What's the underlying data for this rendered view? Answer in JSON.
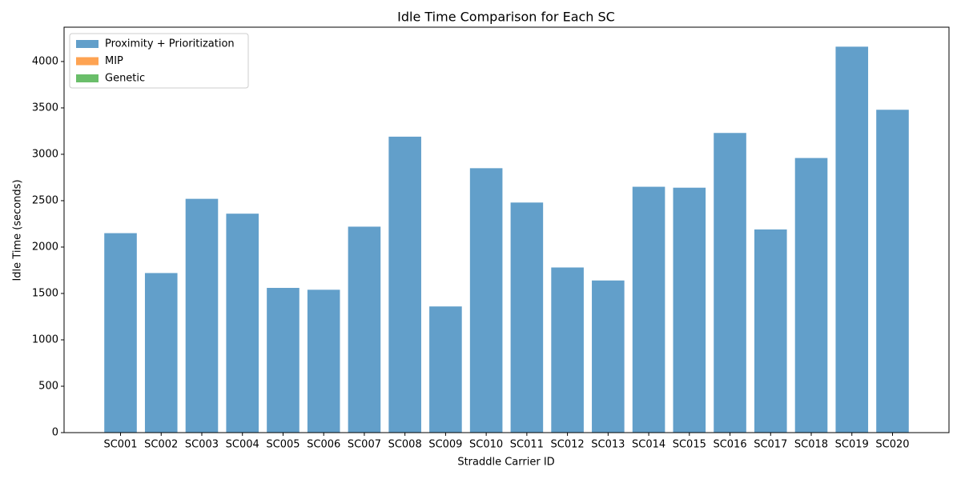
{
  "chart_data": {
    "type": "bar",
    "title": "Idle Time Comparison for Each SC",
    "xlabel": "Straddle Carrier ID",
    "ylabel": "Idle Time (seconds)",
    "categories": [
      "SC001",
      "SC002",
      "SC003",
      "SC004",
      "SC005",
      "SC006",
      "SC007",
      "SC008",
      "SC009",
      "SC010",
      "SC011",
      "SC012",
      "SC013",
      "SC014",
      "SC015",
      "SC016",
      "SC017",
      "SC018",
      "SC019",
      "SC020"
    ],
    "series": [
      {
        "name": "Proximity + Prioritization",
        "color": "#629fca",
        "values": [
          2150,
          1720,
          2520,
          2360,
          1560,
          1540,
          2220,
          3190,
          1360,
          2850,
          2480,
          1780,
          1640,
          2650,
          2640,
          3230,
          2190,
          2960,
          4160,
          3480
        ]
      },
      {
        "name": "MIP",
        "color": "#fea352",
        "values": [
          0,
          0,
          0,
          0,
          0,
          0,
          0,
          0,
          0,
          0,
          0,
          0,
          0,
          0,
          0,
          0,
          0,
          0,
          0,
          0
        ]
      },
      {
        "name": "Genetic",
        "color": "#6abe6a",
        "values": [
          0,
          0,
          0,
          0,
          0,
          0,
          0,
          0,
          0,
          0,
          0,
          0,
          0,
          0,
          0,
          0,
          0,
          0,
          0,
          0
        ]
      }
    ],
    "ylim": [
      0,
      4370
    ],
    "yticks": [
      0,
      500,
      1000,
      1500,
      2000,
      2500,
      3000,
      3500,
      4000
    ],
    "legend": "upper left"
  }
}
